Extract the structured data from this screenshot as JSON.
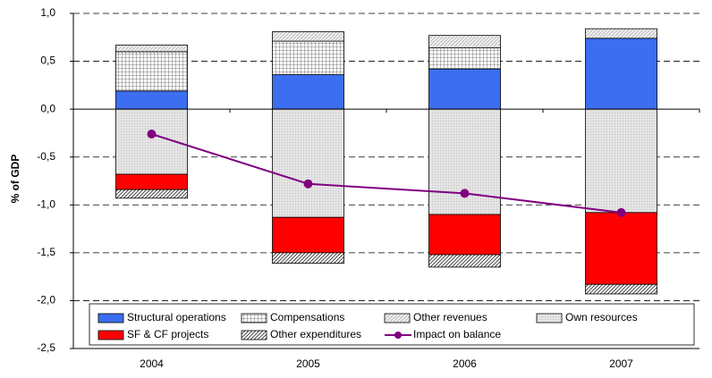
{
  "chart_data": {
    "type": "bar",
    "stacked": true,
    "y_label": "% of GDP",
    "categories": [
      "2004",
      "2005",
      "2006",
      "2007"
    ],
    "ylim": [
      -2.5,
      1.0
    ],
    "yticks": [
      {
        "value": -2.5,
        "label": "-2,5"
      },
      {
        "value": -2.0,
        "label": "-2,0"
      },
      {
        "value": -1.5,
        "label": "-1,5"
      },
      {
        "value": -1.0,
        "label": "-1,0"
      },
      {
        "value": -0.5,
        "label": "-0,5"
      },
      {
        "value": 0,
        "label": "0,0"
      },
      {
        "value": 0.5,
        "label": "0,5"
      },
      {
        "value": 1.0,
        "label": "1,0"
      }
    ],
    "grid": true,
    "series": [
      {
        "name": "Structural operations",
        "color": "#3b6ef0",
        "pattern": "solid",
        "values": [
          0.19,
          0.36,
          0.42,
          0.74
        ]
      },
      {
        "name": "Compensations",
        "color": "#000000",
        "pattern": "grid",
        "values": [
          0.41,
          0.35,
          0.22,
          0
        ]
      },
      {
        "name": "Other revenues",
        "color": "#000000",
        "pattern": "dots",
        "values": [
          0.07,
          0.1,
          0.13,
          0.1
        ]
      },
      {
        "name": "Own resources",
        "color": "#c8c8c8",
        "pattern": "fine",
        "values": [
          -0.68,
          -1.13,
          -1.1,
          -1.08
        ]
      },
      {
        "name": "SF & CF projects",
        "color": "#ff0000",
        "pattern": "solid",
        "values": [
          -0.16,
          -0.37,
          -0.42,
          -0.75
        ]
      },
      {
        "name": "Other expenditures",
        "color": "#000000",
        "pattern": "hatch",
        "values": [
          -0.09,
          -0.11,
          -0.13,
          -0.1
        ]
      },
      {
        "name": "Impact on balance",
        "color": "#800080",
        "type": "line",
        "values": [
          -0.26,
          -0.78,
          -0.88,
          -1.08
        ]
      }
    ]
  }
}
